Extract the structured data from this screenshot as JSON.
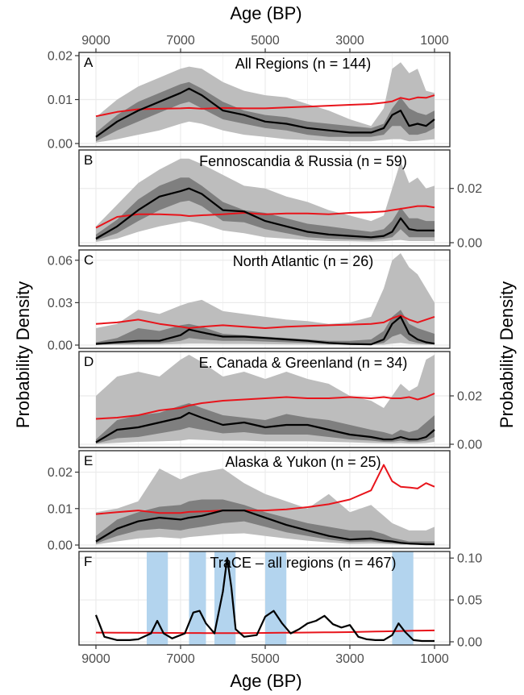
{
  "figure": {
    "x_axis_title_top": "Age (BP)",
    "x_axis_title_bottom": "Age (BP)",
    "y_axis_title_left": "Probability Density",
    "y_axis_title_right": "Probability Density",
    "colors": {
      "outer_band": "#bdbdbd",
      "inner_band": "#7f7f7f",
      "median_line": "#000000",
      "red_line": "#e8141b",
      "trace_bands": "#b3d4ee",
      "grid": "#ebebeb"
    }
  },
  "chart_data": [
    {
      "panel": "A",
      "type": "area",
      "title": "All Regions (n = 144)",
      "xlim": [
        9000,
        1000
      ],
      "ylim": [
        0,
        0.02
      ],
      "y_axis": "left",
      "yticks": [
        0,
        0.01,
        0.02
      ],
      "ytick_labels": [
        "0.00",
        "0.01",
        "0.02"
      ],
      "x": [
        9000,
        8500,
        8000,
        7500,
        7000,
        6800,
        6500,
        6000,
        5500,
        5000,
        4500,
        4000,
        3500,
        3000,
        2500,
        2200,
        2000,
        1800,
        1600,
        1400,
        1200,
        1000
      ],
      "outer_upper": [
        0.006,
        0.01,
        0.013,
        0.015,
        0.017,
        0.0175,
        0.017,
        0.014,
        0.012,
        0.011,
        0.0105,
        0.009,
        0.0075,
        0.0055,
        0.004,
        0.008,
        0.017,
        0.0185,
        0.016,
        0.017,
        0.012,
        0.0115
      ],
      "inner_upper": [
        0.0025,
        0.0065,
        0.0095,
        0.0115,
        0.0135,
        0.014,
        0.0125,
        0.0095,
        0.0075,
        0.0065,
        0.006,
        0.005,
        0.0045,
        0.004,
        0.0035,
        0.0045,
        0.008,
        0.0105,
        0.008,
        0.007,
        0.0065,
        0.0075
      ],
      "median": [
        0.0015,
        0.005,
        0.0075,
        0.0095,
        0.0115,
        0.0125,
        0.011,
        0.0075,
        0.0065,
        0.005,
        0.0045,
        0.0035,
        0.003,
        0.0025,
        0.0025,
        0.0035,
        0.0065,
        0.0075,
        0.004,
        0.0045,
        0.004,
        0.0055
      ],
      "inner_lower": [
        0.0005,
        0.003,
        0.005,
        0.007,
        0.009,
        0.0095,
        0.008,
        0.0055,
        0.0045,
        0.0035,
        0.003,
        0.002,
        0.0015,
        0.0015,
        0.0015,
        0.002,
        0.004,
        0.004,
        0.002,
        0.002,
        0.0025,
        0.0035
      ],
      "outer_lower": [
        0.0002,
        0.001,
        0.002,
        0.003,
        0.0045,
        0.005,
        0.0045,
        0.003,
        0.002,
        0.0015,
        0.001,
        0.0008,
        0.0006,
        0.0005,
        0.0005,
        0.0008,
        0.001,
        0.001,
        0.0005,
        0.0006,
        0.0008,
        0.001
      ],
      "red": [
        0.0062,
        0.0072,
        0.0078,
        0.0079,
        0.008,
        0.0081,
        0.0079,
        0.0081,
        0.008,
        0.008,
        0.0082,
        0.0084,
        0.0086,
        0.0088,
        0.009,
        0.0093,
        0.0096,
        0.0104,
        0.01,
        0.0105,
        0.0104,
        0.011
      ]
    },
    {
      "panel": "B",
      "type": "area",
      "title": "Fennoscandia & Russia (n = 59)",
      "xlim": [
        9000,
        1000
      ],
      "ylim": [
        0,
        0.033
      ],
      "y_axis": "right",
      "yticks": [
        0,
        0.02
      ],
      "ytick_labels": [
        "0.00",
        "0.02"
      ],
      "x": [
        9000,
        8500,
        8000,
        7500,
        7000,
        6800,
        6500,
        6000,
        5500,
        5000,
        4500,
        4000,
        3500,
        3000,
        2500,
        2200,
        2000,
        1800,
        1600,
        1400,
        1200,
        1000
      ],
      "outer_upper": [
        0.006,
        0.014,
        0.022,
        0.027,
        0.031,
        0.031,
        0.029,
        0.025,
        0.021,
        0.02,
        0.017,
        0.015,
        0.012,
        0.01,
        0.008,
        0.01,
        0.02,
        0.03,
        0.022,
        0.024,
        0.02,
        0.021
      ],
      "inner_upper": [
        0.003,
        0.0085,
        0.016,
        0.021,
        0.024,
        0.024,
        0.021,
        0.015,
        0.012,
        0.011,
        0.009,
        0.007,
        0.006,
        0.005,
        0.004,
        0.005,
        0.008,
        0.013,
        0.009,
        0.009,
        0.008,
        0.008
      ],
      "median": [
        0.0015,
        0.006,
        0.012,
        0.017,
        0.019,
        0.02,
        0.018,
        0.012,
        0.0115,
        0.008,
        0.006,
        0.004,
        0.003,
        0.0025,
        0.002,
        0.0025,
        0.004,
        0.009,
        0.005,
        0.0045,
        0.0045,
        0.0045
      ],
      "inner_lower": [
        0.0008,
        0.0035,
        0.008,
        0.012,
        0.015,
        0.0155,
        0.0135,
        0.008,
        0.0075,
        0.005,
        0.0035,
        0.002,
        0.0015,
        0.0012,
        0.001,
        0.0015,
        0.002,
        0.005,
        0.002,
        0.002,
        0.002,
        0.002
      ],
      "outer_lower": [
        0.0003,
        0.0015,
        0.004,
        0.006,
        0.0075,
        0.008,
        0.007,
        0.0045,
        0.0035,
        0.002,
        0.0015,
        0.001,
        0.0006,
        0.0005,
        0.0004,
        0.0005,
        0.0008,
        0.001,
        0.0006,
        0.0006,
        0.0006,
        0.0006
      ],
      "red": [
        0.0055,
        0.0095,
        0.0105,
        0.0105,
        0.0102,
        0.0098,
        0.0101,
        0.0105,
        0.011,
        0.0105,
        0.0108,
        0.0108,
        0.0105,
        0.011,
        0.0112,
        0.0115,
        0.012,
        0.0125,
        0.013,
        0.0135,
        0.0135,
        0.013
      ]
    },
    {
      "panel": "C",
      "type": "area",
      "title": "North Atlantic (n = 26)",
      "xlim": [
        9000,
        1000
      ],
      "ylim": [
        0,
        0.065
      ],
      "y_axis": "left",
      "yticks": [
        0,
        0.03,
        0.06
      ],
      "ytick_labels": [
        "0.00",
        "0.03",
        "0.06"
      ],
      "x": [
        9000,
        8500,
        8000,
        7500,
        7000,
        6800,
        6500,
        6000,
        5500,
        5000,
        4500,
        4000,
        3500,
        3000,
        2500,
        2200,
        2000,
        1800,
        1600,
        1400,
        1200,
        1000
      ],
      "outer_upper": [
        0.012,
        0.015,
        0.025,
        0.022,
        0.028,
        0.03,
        0.032,
        0.024,
        0.022,
        0.02,
        0.018,
        0.017,
        0.015,
        0.016,
        0.02,
        0.04,
        0.06,
        0.065,
        0.055,
        0.05,
        0.04,
        0.03
      ],
      "inner_upper": [
        0.002,
        0.005,
        0.012,
        0.01,
        0.014,
        0.015,
        0.013,
        0.008,
        0.007,
        0.006,
        0.005,
        0.004,
        0.003,
        0.003,
        0.004,
        0.01,
        0.02,
        0.025,
        0.015,
        0.012,
        0.01,
        0.008
      ],
      "median": [
        0.0008,
        0.002,
        0.003,
        0.003,
        0.007,
        0.011,
        0.009,
        0.006,
        0.006,
        0.005,
        0.004,
        0.003,
        0.0015,
        0.0008,
        0.0005,
        0.004,
        0.015,
        0.02,
        0.008,
        0.004,
        0.002,
        0.001
      ],
      "inner_lower": [
        0.0003,
        0.0008,
        0.001,
        0.0012,
        0.003,
        0.005,
        0.004,
        0.003,
        0.003,
        0.0025,
        0.002,
        0.0015,
        0.0008,
        0.0005,
        0.0003,
        0.0015,
        0.006,
        0.008,
        0.003,
        0.0015,
        0.0008,
        0.0005
      ],
      "outer_lower": [
        0.0001,
        0.0002,
        0.0003,
        0.0004,
        0.0008,
        0.001,
        0.001,
        0.0008,
        0.0008,
        0.0006,
        0.0005,
        0.0004,
        0.0002,
        0.0001,
        0.0001,
        0.0003,
        0.001,
        0.0015,
        0.0008,
        0.0004,
        0.0002,
        0.0001
      ],
      "red": [
        0.015,
        0.016,
        0.018,
        0.015,
        0.013,
        0.012,
        0.013,
        0.014,
        0.013,
        0.012,
        0.013,
        0.0135,
        0.014,
        0.0145,
        0.015,
        0.016,
        0.019,
        0.021,
        0.018,
        0.016,
        0.018,
        0.02
      ]
    },
    {
      "panel": "D",
      "type": "area",
      "title": "E. Canada & Greenland (n = 34)",
      "xlim": [
        9000,
        1000
      ],
      "ylim": [
        0,
        0.037
      ],
      "y_axis": "right",
      "yticks": [
        0,
        0.02
      ],
      "ytick_labels": [
        "0.00",
        "0.02"
      ],
      "x": [
        9000,
        8500,
        8000,
        7500,
        7000,
        6800,
        6500,
        6000,
        5500,
        5000,
        4500,
        4000,
        3500,
        3000,
        2500,
        2200,
        2000,
        1800,
        1600,
        1400,
        1200,
        1000
      ],
      "outer_upper": [
        0.02,
        0.028,
        0.03,
        0.028,
        0.035,
        0.037,
        0.034,
        0.028,
        0.03,
        0.027,
        0.03,
        0.027,
        0.025,
        0.02,
        0.018,
        0.015,
        0.02,
        0.025,
        0.022,
        0.024,
        0.035,
        0.037
      ],
      "inner_upper": [
        0.002,
        0.01,
        0.012,
        0.013,
        0.016,
        0.017,
        0.015,
        0.012,
        0.011,
        0.01,
        0.0125,
        0.011,
        0.01,
        0.008,
        0.006,
        0.005,
        0.004,
        0.006,
        0.005,
        0.006,
        0.009,
        0.012
      ],
      "median": [
        0.0008,
        0.006,
        0.007,
        0.009,
        0.011,
        0.013,
        0.011,
        0.008,
        0.009,
        0.007,
        0.008,
        0.008,
        0.006,
        0.004,
        0.003,
        0.002,
        0.002,
        0.003,
        0.002,
        0.002,
        0.003,
        0.006
      ],
      "inner_lower": [
        0.0003,
        0.0025,
        0.003,
        0.0045,
        0.006,
        0.007,
        0.006,
        0.0045,
        0.005,
        0.004,
        0.004,
        0.004,
        0.003,
        0.002,
        0.0015,
        0.001,
        0.001,
        0.0015,
        0.001,
        0.001,
        0.0015,
        0.003
      ],
      "outer_lower": [
        0.0001,
        0.0006,
        0.001,
        0.0012,
        0.0015,
        0.002,
        0.0018,
        0.0015,
        0.0015,
        0.0012,
        0.0012,
        0.0012,
        0.001,
        0.0008,
        0.0005,
        0.0004,
        0.0003,
        0.0005,
        0.0003,
        0.0003,
        0.0005,
        0.001
      ],
      "red": [
        0.0105,
        0.011,
        0.012,
        0.014,
        0.015,
        0.016,
        0.017,
        0.018,
        0.0185,
        0.019,
        0.0195,
        0.019,
        0.019,
        0.0195,
        0.019,
        0.0195,
        0.019,
        0.019,
        0.0195,
        0.0185,
        0.0195,
        0.021
      ]
    },
    {
      "panel": "E",
      "type": "area",
      "title": "Alaska & Yukon (n = 25)",
      "xlim": [
        9000,
        1000
      ],
      "ylim": [
        0,
        0.025
      ],
      "y_axis": "left",
      "yticks": [
        0,
        0.01,
        0.02
      ],
      "ytick_labels": [
        "0.00",
        "0.01",
        "0.02"
      ],
      "x": [
        9000,
        8500,
        8000,
        7500,
        7000,
        6800,
        6500,
        6000,
        5500,
        5000,
        4500,
        4000,
        3500,
        3000,
        2500,
        2200,
        2000,
        1800,
        1600,
        1400,
        1200,
        1000
      ],
      "outer_upper": [
        0.009,
        0.01,
        0.012,
        0.021,
        0.018,
        0.019,
        0.02,
        0.021,
        0.017,
        0.014,
        0.012,
        0.01,
        0.014,
        0.009,
        0.011,
        0.008,
        0.006,
        0.005,
        0.004,
        0.004,
        0.004,
        0.005
      ],
      "inner_upper": [
        0.0025,
        0.007,
        0.009,
        0.0105,
        0.011,
        0.012,
        0.0125,
        0.0125,
        0.011,
        0.009,
        0.0075,
        0.006,
        0.005,
        0.004,
        0.004,
        0.003,
        0.002,
        0.0015,
        0.001,
        0.001,
        0.001,
        0.001
      ],
      "median": [
        0.001,
        0.0045,
        0.0065,
        0.0075,
        0.007,
        0.0075,
        0.008,
        0.0095,
        0.0095,
        0.0075,
        0.0055,
        0.004,
        0.0025,
        0.0015,
        0.0018,
        0.0012,
        0.001,
        0.0006,
        0.0004,
        0.0003,
        0.0002,
        0.0002
      ],
      "inner_lower": [
        0.0004,
        0.0025,
        0.004,
        0.0045,
        0.004,
        0.0045,
        0.005,
        0.006,
        0.0065,
        0.005,
        0.0035,
        0.0025,
        0.0015,
        0.0008,
        0.001,
        0.0006,
        0.0005,
        0.0003,
        0.0002,
        0.0001,
        0.0001,
        0.0001
      ],
      "outer_lower": [
        0.0001,
        0.001,
        0.0018,
        0.0022,
        0.0018,
        0.0022,
        0.0025,
        0.003,
        0.0032,
        0.0025,
        0.0018,
        0.0012,
        0.0007,
        0.0003,
        0.0004,
        0.0003,
        0.0002,
        0.0001,
        0.0001,
        0.0001,
        0,
        0
      ],
      "red": [
        0.0085,
        0.009,
        0.0095,
        0.0088,
        0.0088,
        0.0091,
        0.0092,
        0.0095,
        0.0095,
        0.0095,
        0.0098,
        0.0104,
        0.0112,
        0.0125,
        0.015,
        0.022,
        0.0175,
        0.016,
        0.0158,
        0.0155,
        0.017,
        0.016
      ]
    },
    {
      "panel": "F",
      "type": "line",
      "title": "TraCE – all regions (n = 467)",
      "xlim": [
        9000,
        1000
      ],
      "ylim": [
        0,
        0.104
      ],
      "y_axis": "right",
      "yticks": [
        0,
        0.05,
        0.1
      ],
      "ytick_labels": [
        "0.00",
        "0.05",
        "0.10"
      ],
      "shaded_intervals": [
        [
          7800,
          7300
        ],
        [
          6800,
          6400
        ],
        [
          6200,
          5700
        ],
        [
          5000,
          4500
        ],
        [
          2000,
          1500
        ]
      ],
      "x": [
        9000,
        8800,
        8500,
        8200,
        8000,
        7700,
        7550,
        7400,
        7200,
        6900,
        6700,
        6550,
        6400,
        6200,
        6000,
        5900,
        5800,
        5700,
        5500,
        5200,
        5000,
        4800,
        4600,
        4400,
        4200,
        4000,
        3800,
        3600,
        3400,
        3200,
        3000,
        2800,
        2600,
        2400,
        2200,
        2000,
        1850,
        1700,
        1500,
        1300,
        1000
      ],
      "median": [
        0.032,
        0.006,
        0.002,
        0.002,
        0.003,
        0.01,
        0.025,
        0.01,
        0.004,
        0.01,
        0.035,
        0.037,
        0.022,
        0.01,
        0.06,
        0.1,
        0.065,
        0.015,
        0.006,
        0.008,
        0.03,
        0.037,
        0.022,
        0.01,
        0.015,
        0.022,
        0.025,
        0.031,
        0.021,
        0.017,
        0.02,
        0.006,
        0.003,
        0.002,
        0.002,
        0.008,
        0.022,
        0.012,
        0.002,
        0.001,
        0.001
      ],
      "red": [
        0.011,
        0.011,
        0.0108,
        0.0108,
        0.0107,
        0.0107,
        0.0107,
        0.0106,
        0.0106,
        0.0105,
        0.0105,
        0.0105,
        0.0104,
        0.0104,
        0.0104,
        0.0104,
        0.0104,
        0.0104,
        0.0104,
        0.0105,
        0.0106,
        0.0107,
        0.0108,
        0.0109,
        0.011,
        0.0111,
        0.0112,
        0.0113,
        0.0114,
        0.0115,
        0.0116,
        0.0118,
        0.012,
        0.0122,
        0.0124,
        0.0126,
        0.0128,
        0.013,
        0.0132,
        0.0134,
        0.0136
      ]
    }
  ],
  "x_ticks": {
    "values": [
      9000,
      7000,
      5000,
      3000,
      1000
    ],
    "labels": [
      "9000",
      "7000",
      "5000",
      "3000",
      "1000"
    ]
  }
}
